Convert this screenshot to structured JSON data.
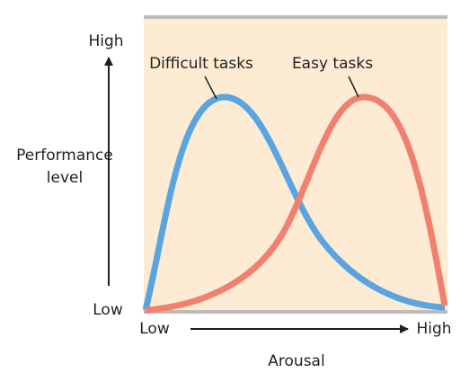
{
  "y_axis": {
    "high": "High",
    "low": "Low",
    "title_lines": [
      "Performance",
      "level"
    ]
  },
  "x_axis": {
    "low": "Low",
    "high": "High",
    "title": "Arousal"
  },
  "curves": [
    {
      "label": "Difficult tasks"
    },
    {
      "label": "Easy tasks"
    }
  ]
}
